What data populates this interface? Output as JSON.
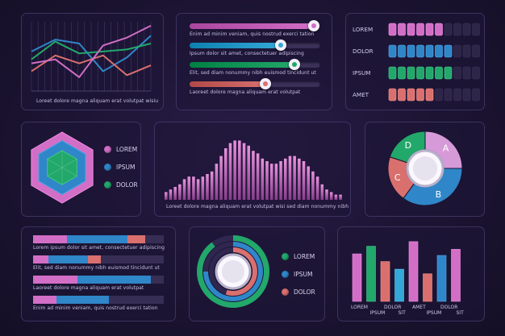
{
  "colors": {
    "pink": "#d26ec6",
    "blue": "#2f86c9",
    "green": "#22a86a",
    "salmon": "#d9706e",
    "lavender": "#d79ad9",
    "cyan": "#34a8d6"
  },
  "caption_lorem": "Loreet dolore magna aliquam erat volutpat wisiu",
  "caption_area": "Loreet dolore magna aliquam erat volutpat wisi sed diam nonummy nibh",
  "sliders": [
    {
      "text": "Enim ad minim veniam, quis nostrud exerci tation",
      "color": "pink",
      "level": 0.95
    },
    {
      "text": "Ipsum dolor sit amet, consectetuer adipiscing",
      "color": "cyan",
      "level": 0.7
    },
    {
      "text": "Elit, sed diam nonummy nibh euismod tincidunt ut",
      "color": "green",
      "level": 0.8
    },
    {
      "text": "Laoreet dolore magna aliquam erat volutpat",
      "color": "salmon",
      "level": 0.58
    }
  ],
  "legend_main": [
    "LOREM",
    "IPSUM",
    "DOLOR"
  ],
  "hbars": [
    {
      "text": "Lorem ipsum dolor sit amet, consectetuer adipiscing"
    },
    {
      "text": "Elit, sed diam nonummy nibh euismod tincidunt ut"
    },
    {
      "text": "Laoreet dolore magna aliquam erat volutpat"
    },
    {
      "text": "Enim ad minim veniam, quis nostrud exerci tation"
    }
  ],
  "chart_data": [
    {
      "type": "line",
      "x": [
        0,
        1,
        2,
        3,
        4,
        5
      ],
      "series": [
        {
          "color": "blue",
          "values": [
            20,
            26,
            24,
            10,
            17,
            28
          ]
        },
        {
          "color": "green",
          "values": [
            16,
            25,
            19,
            20,
            21,
            24
          ]
        },
        {
          "color": "salmon",
          "values": [
            10,
            18,
            14,
            18,
            8,
            13
          ]
        },
        {
          "color": "pink",
          "values": [
            14,
            16,
            7,
            23,
            27,
            33
          ]
        }
      ],
      "ylim": [
        0,
        35
      ],
      "grid": true
    },
    {
      "type": "bar",
      "categories": [
        "LOREM",
        "DOLOR",
        "IPSUM",
        "AMET"
      ],
      "blocks_total": 10,
      "values": [
        6,
        7,
        7,
        5
      ],
      "colors": [
        "pink",
        "blue",
        "green",
        "salmon"
      ]
    },
    {
      "type": "area",
      "values": [
        3,
        4,
        5,
        6,
        8,
        9,
        9,
        8,
        9,
        10,
        11,
        14,
        17,
        20,
        22,
        23,
        23,
        22,
        21,
        19,
        18,
        16,
        15,
        14,
        14,
        15,
        16,
        17,
        17,
        16,
        15,
        13,
        11,
        9,
        6,
        4,
        3,
        2,
        2
      ],
      "ylim": [
        0,
        25
      ]
    },
    {
      "type": "radar",
      "series": [
        {
          "name": "LOREM",
          "color": "pink",
          "level": 1.0
        },
        {
          "name": "IPSUM",
          "color": "blue",
          "level": 0.76
        },
        {
          "name": "DOLOR",
          "color": "green",
          "level": 0.48
        }
      ]
    },
    {
      "type": "pie",
      "labels": [
        "A",
        "B",
        "C",
        "D"
      ],
      "values": [
        25,
        35,
        20,
        20
      ],
      "colors": [
        "lavender",
        "blue",
        "salmon",
        "green"
      ]
    },
    {
      "type": "bar",
      "orientation": "horizontal",
      "series": [
        {
          "color": "pink",
          "values": [
            26,
            12,
            34,
            18
          ]
        },
        {
          "color": "blue",
          "values": [
            46,
            30,
            56,
            40
          ]
        },
        {
          "color": "salmon",
          "values": [
            14,
            10,
            0,
            0
          ]
        }
      ],
      "xlim": [
        0,
        100
      ]
    },
    {
      "type": "pie",
      "style": "radial",
      "labels": [
        "LOREM",
        "IPSUM",
        "DOLOR"
      ],
      "values": [
        90,
        75,
        55
      ],
      "colors": [
        "green",
        "blue",
        "salmon"
      ]
    },
    {
      "type": "bar",
      "categories": [
        "LOREM",
        "IPSUM",
        "DOLOR",
        "SIT",
        "AMET",
        "IPSUM",
        "DOLOR",
        "SIT"
      ],
      "tick_labels": [
        "LOREM",
        "IPSUM",
        "DOLOR",
        "SIT",
        "AMET",
        "IPSUM",
        "DOLOR",
        "SIT"
      ],
      "values": [
        62,
        72,
        52,
        42,
        78,
        36,
        60,
        68
      ],
      "colors": [
        "pink",
        "green",
        "salmon",
        "cyan",
        "pink",
        "salmon",
        "blue",
        "pink"
      ],
      "ylim": [
        0,
        80
      ]
    }
  ]
}
